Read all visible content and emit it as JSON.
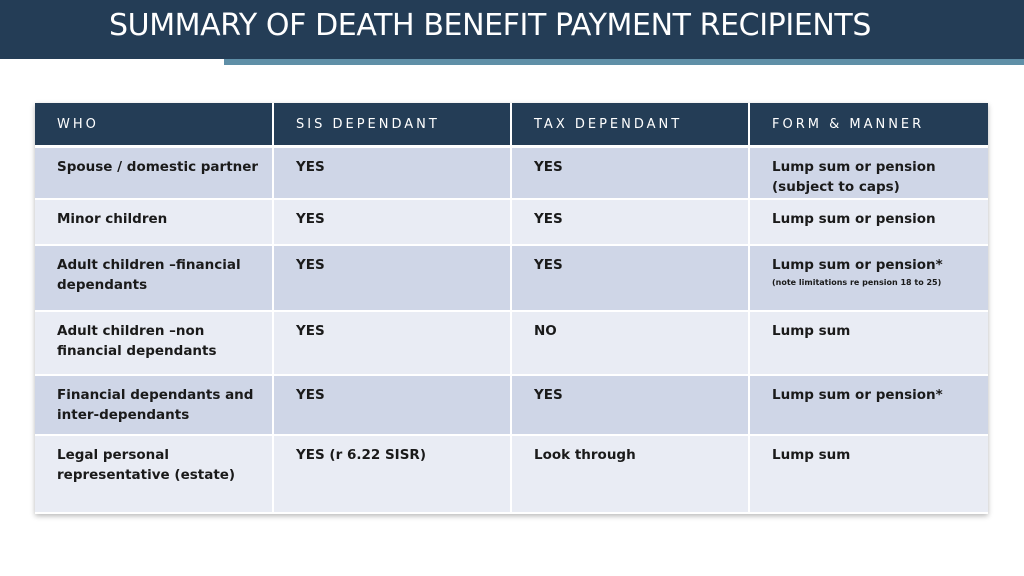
{
  "slide": {
    "title": "SUMMARY OF DEATH BENEFIT PAYMENT RECIPIENTS"
  },
  "table": {
    "headers": [
      "WHO",
      "SIS DEPENDANT",
      "TAX DEPENDANT",
      "FORM & MANNER"
    ],
    "rows": [
      {
        "who": "Spouse / domestic partner",
        "sis": "YES",
        "tax": "YES",
        "form": "Lump sum or pension (subject to caps)",
        "note": ""
      },
      {
        "who": "Minor children",
        "sis": "YES",
        "tax": "YES",
        "form": "Lump sum or pension",
        "note": ""
      },
      {
        "who": "Adult children –financial dependants",
        "sis": "YES",
        "tax": "YES",
        "form": "Lump sum or pension*",
        "note": "(note limitations re pension 18 to 25)"
      },
      {
        "who": "Adult children –non financial dependants",
        "sis": "YES",
        "tax": "NO",
        "form": "Lump sum",
        "note": ""
      },
      {
        "who": "Financial dependants and inter-dependants",
        "sis": "YES",
        "tax": "YES",
        "form": "Lump sum or pension*",
        "note": ""
      },
      {
        "who": "Legal personal representative (estate)",
        "sis": "YES (r 6.22 SISR)",
        "tax": "Look through",
        "form": "Lump sum",
        "note": ""
      }
    ]
  },
  "colors": {
    "header_bg": "#243d56",
    "accent": "#5f8fa7",
    "row_shade": "#cfd6e7",
    "row_light": "#e9ecf4"
  }
}
